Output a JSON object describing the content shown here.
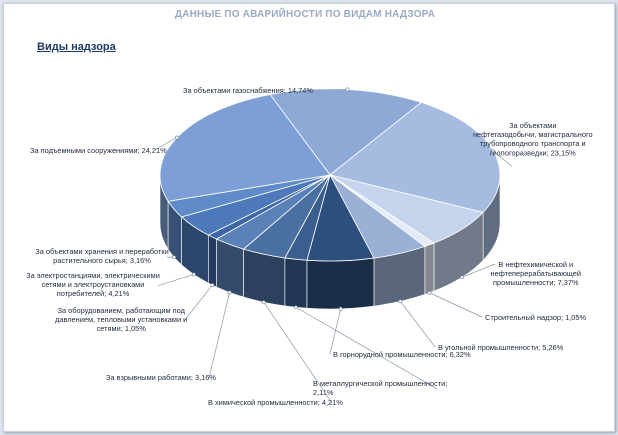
{
  "chart_data": {
    "type": "pie",
    "title": "ДАННЫЕ ПО АВАРИЙНОСТИ ПО ВИДАМ НАДЗОРА",
    "subtitle": "Виды надзора",
    "categories": [
      "За объектами газоснабжения",
      "За объектами нефтегазодобычи, магистрального трубопроводного транспорта и геологоразведки",
      "За нефтехимической и нефтеперерабатывающей промышленностью",
      "Строительный надзор",
      "В угольной промышленности",
      "В горнорудной промышленности",
      "В металлургической промышленности",
      "В химической промышленности",
      "За взрывными работами",
      "За оборудованием, работающим под давлением, тепловыми установками и сетями",
      "За электростанциями, электрическими сетями и электроустановками потребителей",
      "За объектами хранения и переработки растительного сырья",
      "За подъемными сооружениями"
    ],
    "values": [
      14.74,
      23.15,
      7.37,
      1.05,
      5.26,
      6.32,
      2.11,
      4.21,
      3.16,
      1.05,
      4.21,
      3.16,
      24.21
    ],
    "value_labels": [
      "14,74%",
      "23,15%",
      "7,37%",
      "1,05%",
      "5,26%",
      "6,32%",
      "2,11%",
      "4,21%",
      "3,16%",
      "1,05%",
      "4,21%",
      "3,16%",
      "24,21%"
    ],
    "data_labels": [
      [
        "За объектами газоснабжения; 14,74%"
      ],
      [
        "За объектами",
        "нефтегазодобычи, магистрального",
        "трубопроводного транспорта и",
        "геологоразведки; 23,15%"
      ],
      [
        "В нефтехимической и",
        "нефтеперерабатывающей",
        "промышленности; 7,37%"
      ],
      [
        "Строительный надзор; 1,05%"
      ],
      [
        "В угольной промышленности; 5,26%"
      ],
      [
        "В горнорудной промышленности; 6,32%"
      ],
      [
        "В металлургической промышленности;",
        "2,11%"
      ],
      [
        "В химической промышленности; 4,21%"
      ],
      [
        "За взрывными работами; 3,16%"
      ],
      [
        "За оборудованием, работающим под",
        "давлением, тепловыми установками и",
        "сетями; 1,05%"
      ],
      [
        "За электростанциями, электрическими",
        "сетями и электроустановками",
        "потребителей; 4,21%"
      ],
      [
        "За объектами хранения и переработки",
        "растительного сырья; 3,16%"
      ],
      [
        "За подъемными сооружениями; 24,21%"
      ]
    ],
    "colors": [
      "#8fa9d6",
      "#a6bbe0",
      "#c5d3ec",
      "#e4eaf6",
      "#9ab0d5",
      "#2c4f7e",
      "#3a5f8f",
      "#4a70a2",
      "#5b82b8",
      "#3c65a5",
      "#4d79bb",
      "#5f8bc8",
      "#7e9ed6"
    ],
    "legend": "none",
    "3d": true
  }
}
